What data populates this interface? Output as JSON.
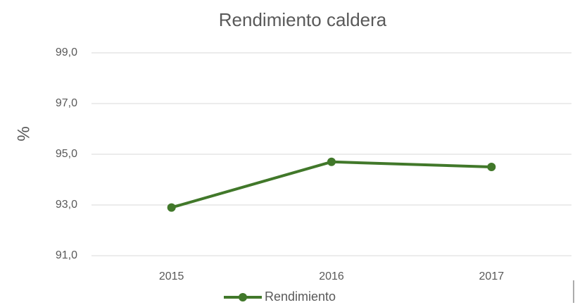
{
  "chart_data": {
    "type": "line",
    "title": "Rendimiento caldera",
    "ylabel": "%",
    "categories": [
      "2015",
      "2016",
      "2017"
    ],
    "series": [
      {
        "name": "Rendimiento",
        "color": "#41782a",
        "values": [
          92.9,
          94.7,
          94.5
        ]
      }
    ],
    "ylim": [
      91,
      99
    ],
    "yticks": [
      {
        "value": 91,
        "label": "91,0"
      },
      {
        "value": 93,
        "label": "93,0"
      },
      {
        "value": 95,
        "label": "95,0"
      },
      {
        "value": 97,
        "label": "97,0"
      },
      {
        "value": 99,
        "label": "99,0"
      }
    ],
    "grid": true,
    "legend": "bottom"
  }
}
